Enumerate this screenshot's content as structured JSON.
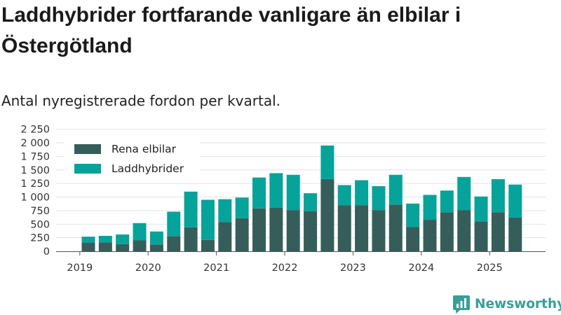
{
  "header": {
    "title": "Laddhybrider fortfarande vanligare än elbilar i Östergötland",
    "subtitle": "Antal nyregistrerade fordon per kvartal."
  },
  "brand": {
    "name": "Newsworthy"
  },
  "colors": {
    "rena": "#355e5a",
    "ladd": "#06a39a",
    "brand": "#3a9e97",
    "grid": "#e3e3e3",
    "axis": "#555555"
  },
  "chart_data": {
    "type": "bar",
    "stacked": true,
    "title": "Laddhybrider fortfarande vanligare än elbilar i Östergötland",
    "subtitle": "Antal nyregistrerade fordon per kvartal.",
    "xlabel": "",
    "ylabel": "",
    "ylim": [
      0,
      2250
    ],
    "yticks": [
      0,
      250,
      500,
      750,
      1000,
      1250,
      1500,
      1750,
      2000,
      2250
    ],
    "ytick_labels": [
      "0",
      "250",
      "500",
      "750",
      "1 000",
      "1 250",
      "1 500",
      "1 750",
      "2 000",
      "2 250"
    ],
    "xticks": [
      {
        "label": "2019",
        "q": -0.5
      },
      {
        "label": "2020",
        "q": 3.5
      },
      {
        "label": "2021",
        "q": 7.5
      },
      {
        "label": "2022",
        "q": 11.5
      },
      {
        "label": "2023",
        "q": 15.5
      },
      {
        "label": "2024",
        "q": 19.5
      },
      {
        "label": "2025",
        "q": 23.5
      }
    ],
    "categories": [
      "2019 Q2",
      "2019 Q3",
      "2019 Q4",
      "2020 Q1",
      "2020 Q2",
      "2020 Q3",
      "2020 Q4",
      "2021 Q1",
      "2021 Q2",
      "2021 Q3",
      "2021 Q4",
      "2022 Q1",
      "2022 Q2",
      "2022 Q3",
      "2022 Q4",
      "2023 Q1",
      "2023 Q2",
      "2023 Q3",
      "2023 Q4",
      "2024 Q1",
      "2024 Q2",
      "2024 Q3",
      "2024 Q4",
      "2025 Q1",
      "2025 Q2",
      "2025 Q3"
    ],
    "legend_position": "top-left",
    "series": [
      {
        "name": "Rena elbilar",
        "values": [
          160,
          165,
          130,
          200,
          125,
          280,
          440,
          210,
          540,
          610,
          790,
          800,
          760,
          740,
          1330,
          850,
          850,
          760,
          860,
          450,
          580,
          720,
          760,
          550,
          720,
          620
        ]
      },
      {
        "name": "Laddhybrider",
        "values": [
          110,
          120,
          180,
          320,
          240,
          450,
          660,
          740,
          420,
          380,
          570,
          640,
          650,
          330,
          620,
          370,
          460,
          440,
          550,
          430,
          460,
          400,
          610,
          460,
          610,
          610
        ]
      }
    ]
  }
}
